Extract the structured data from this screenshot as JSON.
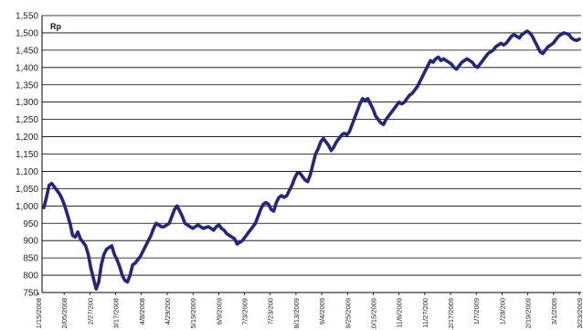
{
  "chart_data": {
    "type": "line",
    "title": "Rp",
    "xlabel": "",
    "ylabel": "",
    "ylim": [
      750,
      1550
    ],
    "yticks": [
      750,
      800,
      850,
      900,
      950,
      1000,
      1050,
      1100,
      1150,
      1200,
      1250,
      1300,
      1350,
      1400,
      1450,
      1500,
      1550
    ],
    "ytick_labels": [
      "750",
      "800",
      "850",
      "900",
      "950",
      "1,000",
      "1,050",
      "1,100",
      "1,150",
      "1,200",
      "1,250",
      "1,300",
      "1,350",
      "1,400",
      "1,450",
      "1,500",
      "1,550"
    ],
    "xtick_labels": [
      "1/15/2008",
      "2/05/2008",
      "2/27/200",
      "3/17/2008",
      "4/8/2008",
      "4/29/200",
      "5/19/2009",
      "6/9/2009",
      "7/3/2009",
      "7/23/200",
      "8/13/2009",
      "9/4/2009",
      "9/25/2009",
      "10/15/2009",
      "11/6/2009",
      "11/27/200",
      "12/17/2009",
      "1/7/2009",
      "1/28/200",
      "2/19/2009",
      "3/1/2009",
      "3/23/2009"
    ],
    "grid": true,
    "legend": "none",
    "line_color": "#27277a",
    "series": [
      {
        "values": [
          995,
          1025,
          1060,
          1065,
          1055,
          1045,
          1035,
          1020,
          1000,
          975,
          950,
          915,
          910,
          925,
          905,
          895,
          885,
          860,
          820,
          790,
          760,
          780,
          830,
          860,
          875,
          880,
          885,
          860,
          845,
          825,
          800,
          785,
          780,
          800,
          830,
          835,
          845,
          855,
          870,
          885,
          900,
          915,
          935,
          950,
          945,
          940,
          940,
          945,
          950,
          970,
          990,
          1000,
          985,
          970,
          950,
          945,
          940,
          935,
          940,
          945,
          940,
          935,
          938,
          940,
          935,
          930,
          940,
          945,
          935,
          930,
          920,
          915,
          910,
          905,
          890,
          895,
          900,
          910,
          920,
          930,
          940,
          950,
          970,
          990,
          1005,
          1010,
          1005,
          990,
          985,
          1010,
          1025,
          1030,
          1025,
          1030,
          1045,
          1060,
          1080,
          1095,
          1095,
          1085,
          1075,
          1070,
          1090,
          1120,
          1150,
          1165,
          1185,
          1195,
          1185,
          1175,
          1160,
          1170,
          1185,
          1195,
          1205,
          1210,
          1205,
          1215,
          1235,
          1255,
          1275,
          1295,
          1310,
          1305,
          1310,
          1295,
          1280,
          1260,
          1250,
          1240,
          1235,
          1250,
          1260,
          1270,
          1280,
          1290,
          1300,
          1295,
          1300,
          1310,
          1320,
          1325,
          1335,
          1345,
          1360,
          1375,
          1390,
          1405,
          1420,
          1415,
          1425,
          1430,
          1420,
          1425,
          1420,
          1415,
          1410,
          1400,
          1395,
          1405,
          1415,
          1420,
          1425,
          1420,
          1415,
          1405,
          1400,
          1410,
          1420,
          1430,
          1440,
          1445,
          1450,
          1460,
          1465,
          1470,
          1465,
          1470,
          1480,
          1490,
          1495,
          1490,
          1485,
          1495,
          1500,
          1505,
          1500,
          1490,
          1475,
          1460,
          1445,
          1440,
          1450,
          1460,
          1465,
          1470,
          1480,
          1490,
          1495,
          1500,
          1498,
          1495,
          1485,
          1480,
          1478,
          1482
        ]
      }
    ]
  }
}
